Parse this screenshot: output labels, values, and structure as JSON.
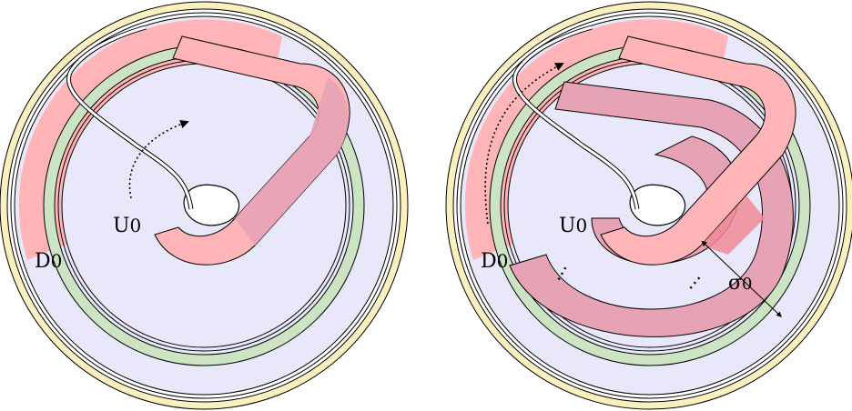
{
  "panels": [
    {
      "id": "left",
      "labels": {
        "disk": "D",
        "disk_sub": "0",
        "region": "U",
        "region_sub": "0"
      }
    },
    {
      "id": "right",
      "labels": {
        "disk": "D",
        "disk_sub": "0",
        "region": "U",
        "region_sub": "0",
        "sigma": "σ",
        "sigma_sub": "0",
        "dots": "⋯",
        "dots2": "⋯"
      }
    }
  ],
  "colors": {
    "outer_ring": "#faf0bf",
    "green_ring": "#cde4c4",
    "lavender": "#e8e8fa",
    "band": "#ffb5b8",
    "band_dark": "#e7a3b6",
    "overlap": "#f08a96",
    "stroke": "#000000"
  }
}
